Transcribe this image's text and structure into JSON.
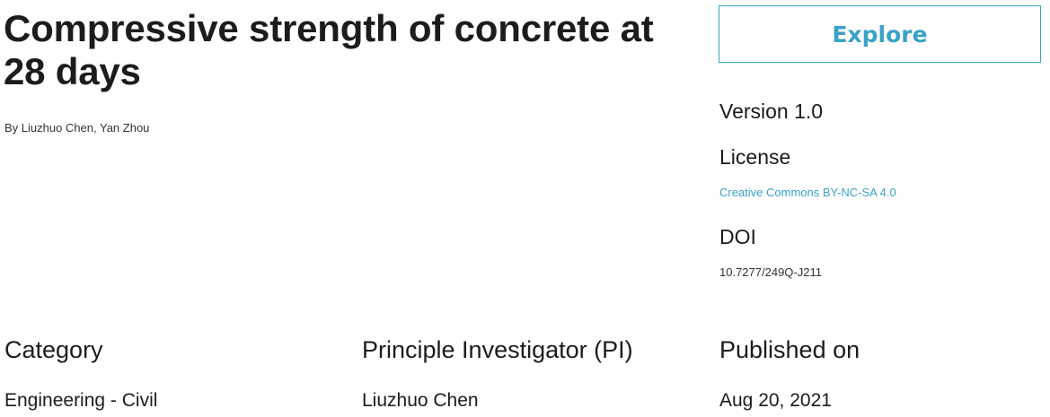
{
  "header": {
    "title": "Compressive strength of concrete at 28 days",
    "authors": "By Liuzhuo Chen, Yan Zhou"
  },
  "actions": {
    "explore_label": "Explore"
  },
  "meta": {
    "version": "Version 1.0",
    "license_heading": "License",
    "license_value": "Creative Commons BY-NC-SA 4.0",
    "doi_heading": "DOI",
    "doi_value": "10.7277/249Q-J211"
  },
  "details": {
    "category_heading": "Category",
    "category_value": "Engineering - Civil",
    "pi_heading": "Principle Investigator (PI)",
    "pi_value": "Liuzhuo Chen",
    "published_heading": "Published on",
    "published_value": "Aug 20, 2021"
  },
  "colors": {
    "accent": "#3aa1c9",
    "text": "#1c1c1c"
  }
}
